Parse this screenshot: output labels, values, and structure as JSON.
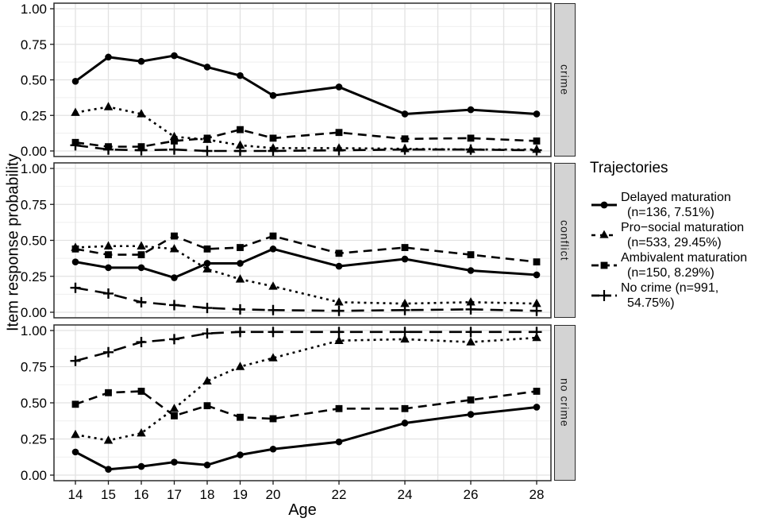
{
  "chart": {
    "y_axis_title": "Item response probability",
    "x_axis_title": "Age",
    "y_ticks": [
      "1.00",
      "0.75",
      "0.50",
      "0.25",
      "0.00"
    ],
    "colors": {
      "line": "#000000",
      "strip_bg": "#d3d3d3",
      "panel_border": "#2b2b2b",
      "grid_major": "#e2e2e2",
      "grid_minor": "#efefef",
      "background": "#ffffff"
    }
  },
  "chart_data": {
    "type": "line",
    "x": [
      14,
      15,
      16,
      17,
      18,
      19,
      20,
      22,
      24,
      26,
      28
    ],
    "xlabel": "Age",
    "ylabel": "Item response probability",
    "ylim": [
      0,
      1
    ],
    "y_tick_values": [
      0,
      0.25,
      0.5,
      0.75,
      1
    ],
    "grid": true,
    "legend_position": "right",
    "facets": [
      {
        "label": "crime",
        "series": [
          {
            "name": "Delayed maturation",
            "marker": "circle",
            "linetype": "solid",
            "values": [
              0.49,
              0.66,
              0.63,
              0.67,
              0.59,
              0.53,
              0.39,
              0.45,
              0.26,
              0.29,
              0.26
            ]
          },
          {
            "name": "Pro−social maturation",
            "marker": "triangle",
            "linetype": "dotted",
            "values": [
              0.27,
              0.31,
              0.26,
              0.1,
              0.08,
              0.04,
              0.02,
              0.02,
              0.015,
              0.01,
              0.01
            ]
          },
          {
            "name": "Ambivalent maturation",
            "marker": "square",
            "linetype": "dashed",
            "values": [
              0.06,
              0.03,
              0.03,
              0.07,
              0.09,
              0.15,
              0.09,
              0.13,
              0.085,
              0.09,
              0.07
            ]
          },
          {
            "name": "No crime",
            "marker": "plus",
            "linetype": "longdash",
            "values": [
              0.04,
              0.01,
              0.005,
              0.01,
              0.0,
              0.0,
              0.0,
              0.005,
              0.01,
              0.01,
              0.005
            ]
          }
        ]
      },
      {
        "label": "conflict",
        "series": [
          {
            "name": "Delayed maturation",
            "marker": "circle",
            "linetype": "solid",
            "values": [
              0.35,
              0.31,
              0.31,
              0.24,
              0.34,
              0.34,
              0.44,
              0.32,
              0.37,
              0.29,
              0.26
            ]
          },
          {
            "name": "Pro−social maturation",
            "marker": "triangle",
            "linetype": "dotted",
            "values": [
              0.45,
              0.46,
              0.46,
              0.44,
              0.3,
              0.23,
              0.18,
              0.07,
              0.06,
              0.07,
              0.06
            ]
          },
          {
            "name": "Ambivalent maturation",
            "marker": "square",
            "linetype": "dashed",
            "values": [
              0.44,
              0.4,
              0.4,
              0.53,
              0.44,
              0.45,
              0.53,
              0.41,
              0.45,
              0.4,
              0.35
            ]
          },
          {
            "name": "No crime",
            "marker": "plus",
            "linetype": "longdash",
            "values": [
              0.17,
              0.13,
              0.07,
              0.05,
              0.03,
              0.02,
              0.015,
              0.01,
              0.015,
              0.02,
              0.01
            ]
          }
        ]
      },
      {
        "label": "no crime",
        "series": [
          {
            "name": "Delayed maturation",
            "marker": "circle",
            "linetype": "solid",
            "values": [
              0.16,
              0.04,
              0.06,
              0.09,
              0.07,
              0.14,
              0.18,
              0.23,
              0.36,
              0.42,
              0.47
            ]
          },
          {
            "name": "Pro−social maturation",
            "marker": "triangle",
            "linetype": "dotted",
            "values": [
              0.28,
              0.24,
              0.29,
              0.46,
              0.65,
              0.75,
              0.81,
              0.93,
              0.94,
              0.92,
              0.95
            ]
          },
          {
            "name": "Ambivalent maturation",
            "marker": "square",
            "linetype": "dashed",
            "values": [
              0.49,
              0.57,
              0.58,
              0.41,
              0.48,
              0.4,
              0.39,
              0.46,
              0.46,
              0.52,
              0.58
            ]
          },
          {
            "name": "No crime",
            "marker": "plus",
            "linetype": "longdash",
            "values": [
              0.79,
              0.85,
              0.92,
              0.94,
              0.98,
              0.99,
              0.99,
              0.99,
              0.99,
              0.99,
              0.99
            ]
          }
        ]
      }
    ],
    "legend": {
      "title": "Trajectories",
      "items": [
        {
          "line1": "Delayed maturation",
          "line2": "(n=136, 7.51%)",
          "marker": "circle",
          "linetype": "solid"
        },
        {
          "line1": "Pro−social maturation",
          "line2": "(n=533, 29.45%)",
          "marker": "triangle",
          "linetype": "dotted"
        },
        {
          "line1": "Ambivalent maturation",
          "line2": "(n=150, 8.29%)",
          "marker": "square",
          "linetype": "dashed"
        },
        {
          "line1": "No crime (n=991,",
          "line2": "54.75%)",
          "marker": "plus",
          "linetype": "longdash"
        }
      ]
    }
  }
}
